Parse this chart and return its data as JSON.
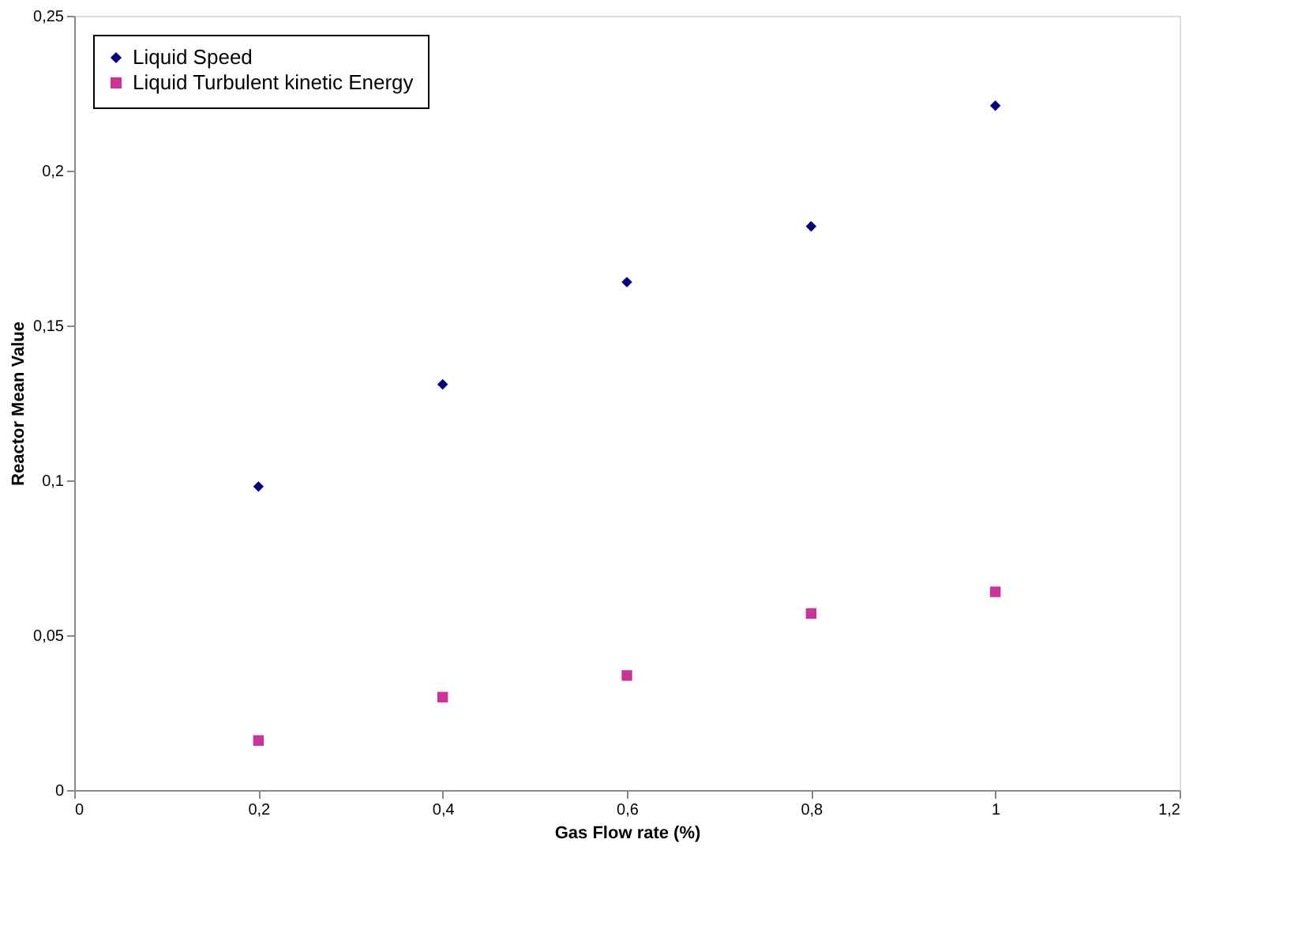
{
  "chart_data": {
    "type": "scatter",
    "xlabel": "Gas Flow rate (%)",
    "ylabel": "Reactor Mean Value",
    "x": [
      0.2,
      0.4,
      0.6,
      0.8,
      1.0
    ],
    "series": [
      {
        "name": "Liquid Speed",
        "color": "#000080",
        "marker": "diamond",
        "values": [
          0.098,
          0.131,
          0.164,
          0.182,
          0.221
        ]
      },
      {
        "name": "Liquid Turbulent kinetic Energy",
        "color": "#cc3399",
        "marker": "square",
        "values": [
          0.016,
          0.03,
          0.037,
          0.057,
          0.064
        ]
      }
    ],
    "xlim": [
      0,
      1.2
    ],
    "xticks": [
      0,
      {
        "value": 0.2,
        "label": "0,2"
      },
      {
        "value": 0.4,
        "label": "0,4"
      },
      {
        "value": 0.6,
        "label": "0,6"
      },
      {
        "value": 0.8,
        "label": "0,8"
      },
      1,
      {
        "value": 1.2,
        "label": "1,2"
      }
    ],
    "ylim": [
      0,
      0.25
    ],
    "yticks": [
      0,
      {
        "value": 0.05,
        "label": "0,05"
      },
      {
        "value": 0.1,
        "label": "0,1"
      },
      {
        "value": 0.15,
        "label": "0,15"
      },
      {
        "value": 0.2,
        "label": "0,2"
      },
      {
        "value": 0.25,
        "label": "0,25"
      }
    ],
    "legend": "top left",
    "grid": false
  }
}
